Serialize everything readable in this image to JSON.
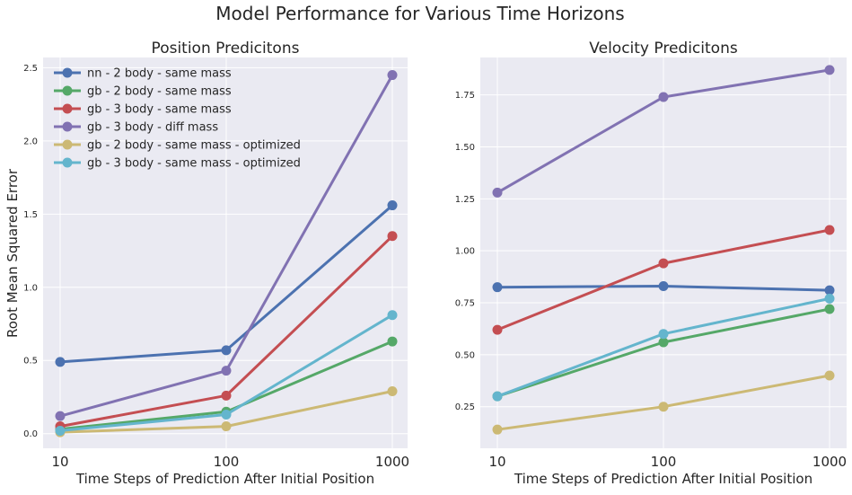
{
  "suptitle": "Model Performance for Various Time Horizons",
  "colors": {
    "background": "#eaeaf2",
    "grid": "#ffffff"
  },
  "chart_data": [
    {
      "type": "line",
      "title": "Position Predicitons",
      "xlabel": "Time Steps of Prediction After Initial Position",
      "ylabel": "Root Mean Squared Error",
      "x": [
        10,
        100,
        1000
      ],
      "x_tick_labels": [
        "10",
        "100",
        "1000"
      ],
      "x_scale": "log",
      "xlim": [
        10,
        1000
      ],
      "ylim": [
        -0.1,
        2.57
      ],
      "y_ticks": [
        0.0,
        0.5,
        1.0,
        1.5,
        2.0,
        2.5
      ],
      "y_tick_labels": [
        "0.0",
        "0.5",
        "1.0",
        "1.5",
        "2.0",
        "2.5"
      ],
      "grid": true,
      "legend": "top-left",
      "series": [
        {
          "name": "nn - 2 body - same mass",
          "color": "#4c72b0",
          "values": [
            0.49,
            0.57,
            1.56
          ]
        },
        {
          "name": "gb - 2 body - same mass",
          "color": "#55a868",
          "values": [
            0.03,
            0.15,
            0.63
          ]
        },
        {
          "name": "gb - 3 body - same mass",
          "color": "#c44e52",
          "values": [
            0.05,
            0.26,
            1.35
          ]
        },
        {
          "name": "gb - 3 body - diff mass",
          "color": "#8172b2",
          "values": [
            0.12,
            0.43,
            2.45
          ]
        },
        {
          "name": "gb - 2 body - same mass - optimized",
          "color": "#ccb974",
          "values": [
            0.01,
            0.05,
            0.29
          ]
        },
        {
          "name": "gb - 3 body - same mass - optimized",
          "color": "#64b5cd",
          "values": [
            0.02,
            0.13,
            0.81
          ]
        }
      ]
    },
    {
      "type": "line",
      "title": "Velocity Predicitons",
      "xlabel": "Time Steps of Prediction After Initial Position",
      "ylabel": "",
      "x": [
        10,
        100,
        1000
      ],
      "x_tick_labels": [
        "10",
        "100",
        "1000"
      ],
      "x_scale": "log",
      "xlim": [
        10,
        1000
      ],
      "ylim": [
        0.05,
        1.93
      ],
      "y_ticks": [
        0.25,
        0.5,
        0.75,
        1.0,
        1.25,
        1.5,
        1.75
      ],
      "y_tick_labels": [
        "0.25",
        "0.50",
        "0.75",
        "1.00",
        "1.25",
        "1.50",
        "1.75"
      ],
      "grid": true,
      "series": [
        {
          "color": "#4c72b0",
          "values": [
            0.825,
            0.83,
            0.81
          ]
        },
        {
          "color": "#55a868",
          "values": [
            0.3,
            0.56,
            0.72
          ]
        },
        {
          "color": "#c44e52",
          "values": [
            0.62,
            0.94,
            1.1
          ]
        },
        {
          "color": "#8172b2",
          "values": [
            1.28,
            1.74,
            1.87
          ]
        },
        {
          "color": "#ccb974",
          "values": [
            0.14,
            0.25,
            0.4
          ]
        },
        {
          "color": "#64b5cd",
          "values": [
            0.3,
            0.6,
            0.77
          ]
        }
      ]
    }
  ]
}
